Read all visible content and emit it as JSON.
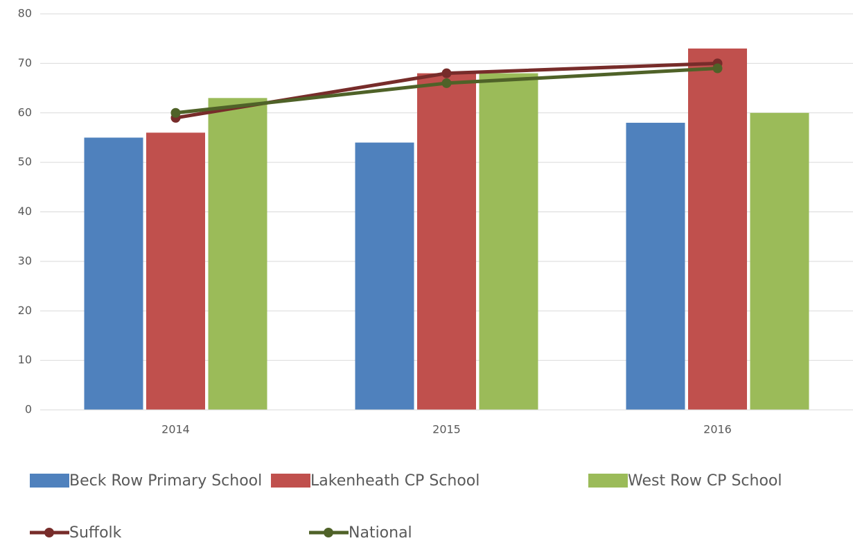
{
  "chart_data": {
    "type": "bar",
    "categories": [
      "2014",
      "2015",
      "2016"
    ],
    "series": [
      {
        "name": "Beck Row Primary School",
        "color": "#4f81bd",
        "values": [
          55,
          54,
          58
        ]
      },
      {
        "name": "Lakenheath CP School",
        "color": "#c0504d",
        "values": [
          56,
          68,
          73
        ]
      },
      {
        "name": "West Row CP School",
        "color": "#9bbb59",
        "values": [
          63,
          68,
          60
        ]
      },
      {
        "name": "Suffolk",
        "color": "#772c2a",
        "type": "line",
        "values": [
          59,
          68,
          70
        ]
      },
      {
        "name": "National",
        "color": "#4f6228",
        "type": "line",
        "values": [
          60,
          66,
          69
        ]
      }
    ],
    "ylim": [
      0,
      80
    ],
    "yticks": [
      0,
      10,
      20,
      30,
      40,
      50,
      60,
      70,
      80
    ],
    "grid": true,
    "legend": "bottom"
  }
}
